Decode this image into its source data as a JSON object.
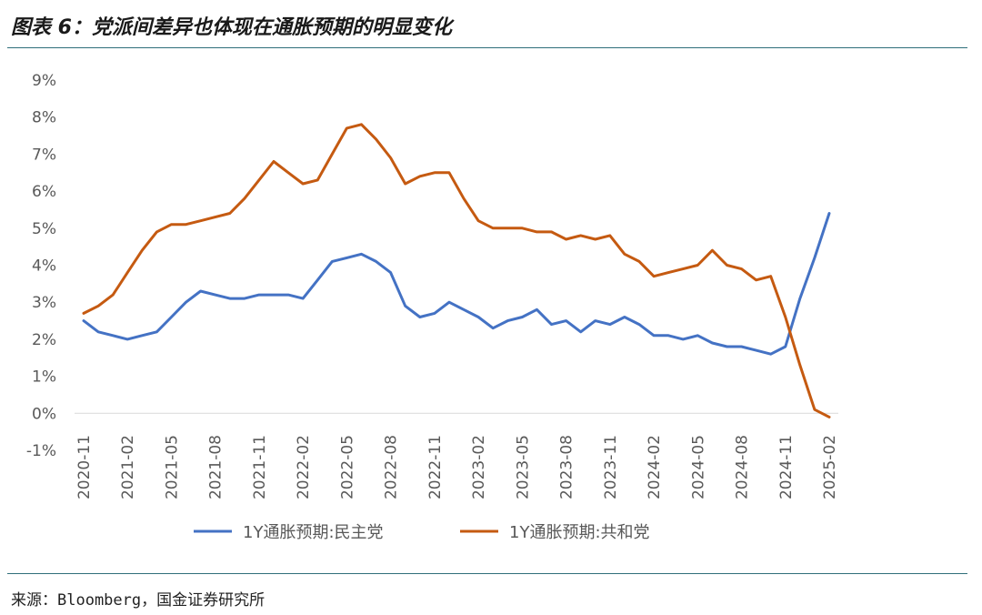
{
  "header": {
    "title": "图表 6：党派间差异也体现在通胀预期的明显变化"
  },
  "footer": {
    "source": "来源：Bloomberg，国金证券研究所"
  },
  "chart_data": {
    "type": "line",
    "title": "",
    "xlabel": "",
    "ylabel": "",
    "ylim": [
      -1,
      9
    ],
    "y_ticks": [
      "-1%",
      "0%",
      "1%",
      "2%",
      "3%",
      "4%",
      "5%",
      "6%",
      "7%",
      "8%",
      "9%"
    ],
    "x": [
      "2020-11",
      "2020-12",
      "2021-01",
      "2021-02",
      "2021-03",
      "2021-04",
      "2021-05",
      "2021-06",
      "2021-07",
      "2021-08",
      "2021-09",
      "2021-10",
      "2021-11",
      "2021-12",
      "2022-01",
      "2022-02",
      "2022-03",
      "2022-04",
      "2022-05",
      "2022-06",
      "2022-07",
      "2022-08",
      "2022-09",
      "2022-10",
      "2022-11",
      "2022-12",
      "2023-01",
      "2023-02",
      "2023-03",
      "2023-04",
      "2023-05",
      "2023-06",
      "2023-07",
      "2023-08",
      "2023-09",
      "2023-10",
      "2023-11",
      "2023-12",
      "2024-01",
      "2024-02",
      "2024-03",
      "2024-04",
      "2024-05",
      "2024-06",
      "2024-07",
      "2024-08",
      "2024-09",
      "2024-10",
      "2024-11",
      "2024-12",
      "2025-01",
      "2025-02"
    ],
    "x_tick_labels": [
      "2020-11",
      "2021-02",
      "2021-05",
      "2021-08",
      "2021-11",
      "2022-02",
      "2022-05",
      "2022-08",
      "2022-11",
      "2023-02",
      "2023-05",
      "2023-08",
      "2023-11",
      "2024-02",
      "2024-05",
      "2024-08",
      "2024-11",
      "2025-02"
    ],
    "grid": false,
    "legend_position": "bottom",
    "series": [
      {
        "name": "1Y通胀预期:民主党",
        "color": "#4472C4",
        "values": [
          2.5,
          2.2,
          2.1,
          2.0,
          2.1,
          2.2,
          2.6,
          3.0,
          3.3,
          3.2,
          3.1,
          3.1,
          3.2,
          3.2,
          3.2,
          3.1,
          3.6,
          4.1,
          4.2,
          4.3,
          4.1,
          3.8,
          2.9,
          2.6,
          2.7,
          3.0,
          2.8,
          2.6,
          2.3,
          2.5,
          2.6,
          2.8,
          2.4,
          2.5,
          2.2,
          2.5,
          2.4,
          2.6,
          2.4,
          2.1,
          2.1,
          2.0,
          2.1,
          1.9,
          1.8,
          1.8,
          1.7,
          1.6,
          1.8,
          3.1,
          4.2,
          5.4
        ]
      },
      {
        "name": "1Y通胀预期:共和党",
        "color": "#C55A11",
        "values": [
          2.7,
          2.9,
          3.2,
          3.8,
          4.4,
          4.9,
          5.1,
          5.1,
          5.2,
          5.3,
          5.4,
          5.8,
          6.3,
          6.8,
          6.5,
          6.2,
          6.3,
          7.0,
          7.7,
          7.8,
          7.4,
          6.9,
          6.2,
          6.4,
          6.5,
          6.5,
          5.8,
          5.2,
          5.0,
          5.0,
          5.0,
          4.9,
          4.9,
          4.7,
          4.8,
          4.7,
          4.8,
          4.3,
          4.1,
          3.7,
          3.8,
          3.9,
          4.0,
          4.4,
          4.0,
          3.9,
          3.6,
          3.7,
          2.6,
          1.3,
          0.1,
          -0.1
        ]
      }
    ]
  }
}
